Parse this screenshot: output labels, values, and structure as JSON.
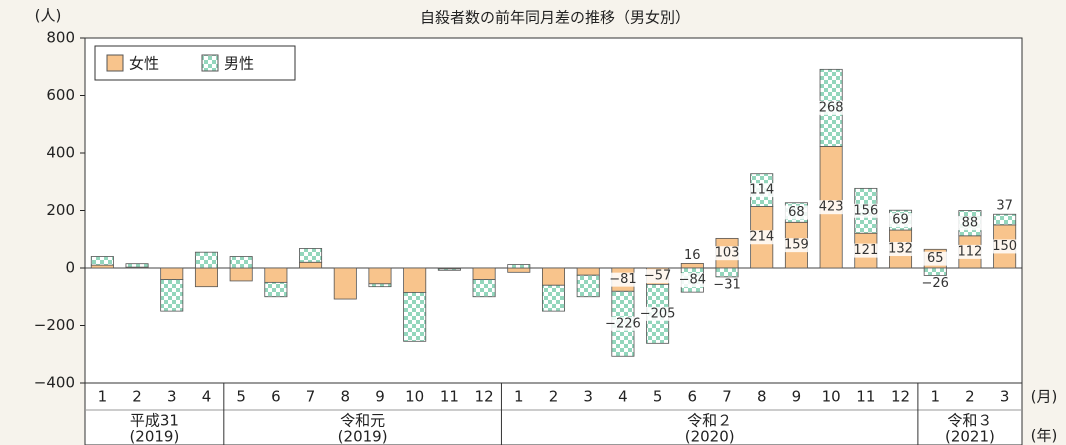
{
  "chart_data": {
    "type": "bar",
    "title": "自殺者数の前年同月差の推移（男女別）",
    "y_unit": "(人)",
    "x_unit_month": "(月)",
    "x_unit_year": "(年)",
    "categories": [
      "1",
      "2",
      "3",
      "4",
      "5",
      "6",
      "7",
      "8",
      "9",
      "10",
      "11",
      "12",
      "1",
      "2",
      "3",
      "4",
      "5",
      "6",
      "7",
      "8",
      "9",
      "10",
      "11",
      "12",
      "1",
      "2",
      "3"
    ],
    "groups": [
      {
        "name": "平成31",
        "year": "(2019)",
        "months": 4
      },
      {
        "name": "令和元",
        "year": "(2019)",
        "months": 8
      },
      {
        "name": "令和２",
        "year": "(2020)",
        "months": 12
      },
      {
        "name": "令和３",
        "year": "(2021)",
        "months": 3
      }
    ],
    "series": [
      {
        "name": "女性",
        "color": "#f8c48c",
        "values": [
          10,
          3,
          -40,
          -65,
          -45,
          -50,
          20,
          -108,
          -55,
          -85,
          -3,
          -40,
          -15,
          -60,
          -25,
          -81,
          -57,
          16,
          103,
          214,
          159,
          423,
          121,
          132,
          65,
          112,
          150
        ],
        "value_labels": [
          null,
          null,
          null,
          null,
          null,
          null,
          null,
          null,
          null,
          null,
          null,
          null,
          null,
          null,
          null,
          "−81",
          "−57",
          "16",
          "103",
          "214",
          "159",
          "423",
          "121",
          "132",
          "65",
          "112",
          "150"
        ]
      },
      {
        "name": "男性",
        "color": "#93d6bc",
        "values": [
          30,
          12,
          -110,
          55,
          40,
          -50,
          48,
          0,
          -10,
          -170,
          -5,
          -60,
          12,
          -90,
          -75,
          -226,
          -205,
          -84,
          -31,
          114,
          68,
          268,
          156,
          69,
          -26,
          88,
          37
        ],
        "value_labels": [
          null,
          null,
          null,
          null,
          null,
          null,
          null,
          null,
          null,
          null,
          null,
          null,
          null,
          null,
          null,
          "−226",
          "−205",
          "−84",
          "−31",
          "114",
          "68",
          "268",
          "156",
          "69",
          "−26",
          "88",
          "37"
        ]
      }
    ],
    "ylim": [
      -400,
      800
    ],
    "yticks": [
      {
        "value": -400,
        "label": "−400"
      },
      {
        "value": -200,
        "label": "−200"
      },
      0,
      200,
      400,
      600,
      800
    ],
    "stacked": true,
    "grid": false,
    "legend": "upper left"
  }
}
